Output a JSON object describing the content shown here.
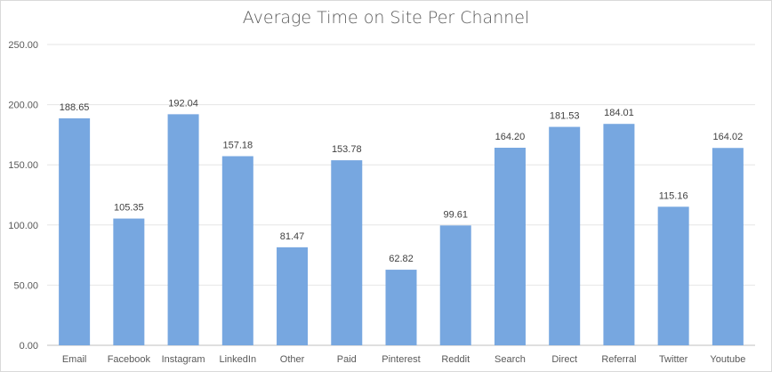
{
  "chart_data": {
    "type": "bar",
    "title": "Average Time on Site Per Channel",
    "xlabel": "",
    "ylabel": "",
    "ylim": [
      0,
      250
    ],
    "yticks": [
      0,
      50,
      100,
      150,
      200,
      250
    ],
    "ytick_labels": [
      "0.00",
      "50.00",
      "100.00",
      "150.00",
      "200.00",
      "250.00"
    ],
    "grid": true,
    "legend": "none",
    "bar_color": "#77a7e0",
    "categories": [
      "Email",
      "Facebook",
      "Instagram",
      "LinkedIn",
      "Other",
      "Paid",
      "Pinterest",
      "Reddit",
      "Search",
      "Direct",
      "Referral",
      "Twitter",
      "Youtube"
    ],
    "values": [
      188.65,
      105.35,
      192.04,
      157.18,
      81.47,
      153.78,
      62.82,
      99.61,
      164.2,
      181.53,
      184.01,
      115.16,
      164.02
    ],
    "value_labels": [
      "188.65",
      "105.35",
      "192.04",
      "157.18",
      "81.47",
      "153.78",
      "62.82",
      "99.61",
      "164.20",
      "181.53",
      "184.01",
      "115.16",
      "164.02"
    ]
  }
}
